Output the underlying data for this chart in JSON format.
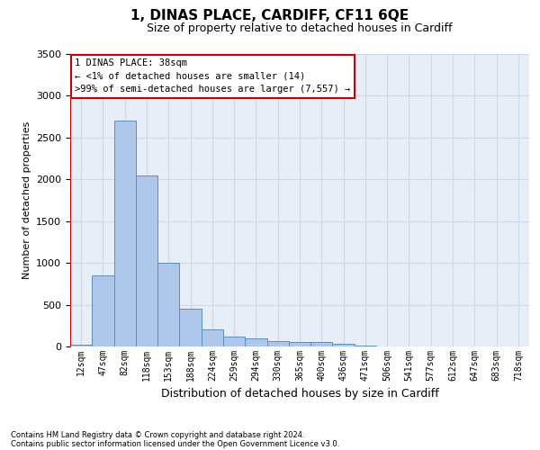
{
  "title": "1, DINAS PLACE, CARDIFF, CF11 6QE",
  "subtitle": "Size of property relative to detached houses in Cardiff",
  "xlabel": "Distribution of detached houses by size in Cardiff",
  "ylabel": "Number of detached properties",
  "categories": [
    "12sqm",
    "47sqm",
    "82sqm",
    "118sqm",
    "153sqm",
    "188sqm",
    "224sqm",
    "259sqm",
    "294sqm",
    "330sqm",
    "365sqm",
    "400sqm",
    "436sqm",
    "471sqm",
    "506sqm",
    "541sqm",
    "577sqm",
    "612sqm",
    "647sqm",
    "683sqm",
    "718sqm"
  ],
  "values": [
    20,
    850,
    2700,
    2050,
    1000,
    450,
    200,
    120,
    100,
    70,
    50,
    50,
    30,
    10,
    3,
    2,
    1,
    1,
    0,
    0,
    0
  ],
  "bar_color": "#aec6e8",
  "bar_edge_color": "#5a8fc0",
  "annotation_title": "1 DINAS PLACE: 38sqm",
  "annotation_line1": "← <1% of detached houses are smaller (14)",
  "annotation_line2": ">99% of semi-detached houses are larger (7,557) →",
  "annotation_box_color": "#ffffff",
  "annotation_box_edge": "#cc0000",
  "marker_line_color": "#cc0000",
  "ylim": [
    0,
    3500
  ],
  "yticks": [
    0,
    500,
    1000,
    1500,
    2000,
    2500,
    3000,
    3500
  ],
  "grid_color": "#d0d8e8",
  "background_color": "#e8eef8",
  "footer1": "Contains HM Land Registry data © Crown copyright and database right 2024.",
  "footer2": "Contains public sector information licensed under the Open Government Licence v3.0."
}
